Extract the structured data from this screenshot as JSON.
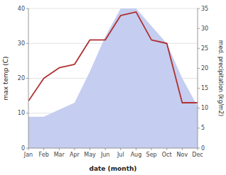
{
  "chart_data": {
    "type": "line",
    "categories": [
      "Jan",
      "Feb",
      "Mar",
      "Apr",
      "May",
      "Jun",
      "Jul",
      "Aug",
      "Sep",
      "Oct",
      "Nov",
      "Dec"
    ],
    "series": [
      {
        "type": "area",
        "color": "#c5cdf0",
        "values": [
          9,
          9,
          11,
          13,
          22,
          32,
          40,
          40,
          35,
          30,
          20,
          12
        ]
      },
      {
        "type": "line",
        "color": "#b03030",
        "values": [
          13.5,
          20,
          23,
          24,
          31,
          31,
          38,
          39,
          31,
          30,
          13,
          13
        ]
      }
    ],
    "xlabel": "date (month)",
    "ylabel": "max temp (C)",
    "y2label": "med. precipitation (kg/m2)",
    "ylim": [
      0,
      40
    ],
    "yticks": [
      0,
      10,
      20,
      30,
      40
    ],
    "y2lim": [
      0,
      35
    ],
    "y2ticks": [
      0,
      5,
      10,
      15,
      20,
      25,
      30,
      35
    ],
    "grid": true
  }
}
